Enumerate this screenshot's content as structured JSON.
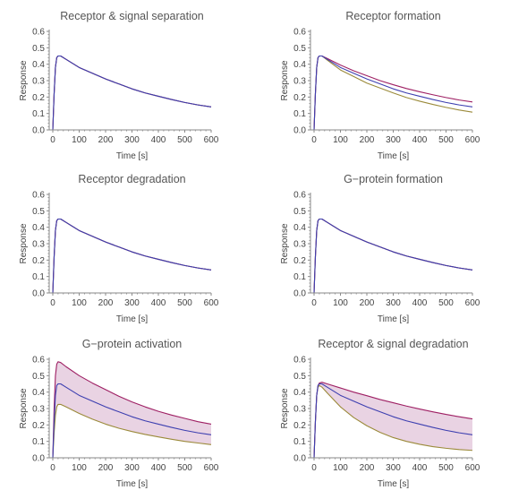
{
  "colors": {
    "upper": "#9e1f63",
    "middle": "#3d3fb0",
    "lower": "#9b8a3a",
    "band": "#e9d3e3",
    "axis": "#8a8a8a"
  },
  "chart_data": [
    {
      "type": "line",
      "title": "Receptor & signal separation",
      "xlabel": "Time [s]",
      "ylabel": "Response",
      "xlim": [
        0,
        600
      ],
      "ylim": [
        0,
        0.6
      ],
      "xticks": [
        0,
        100,
        200,
        300,
        400,
        500,
        600
      ],
      "yticks": [
        0.0,
        0.1,
        0.2,
        0.3,
        0.4,
        0.5,
        0.6
      ],
      "band": false,
      "x": [
        0,
        5,
        10,
        15,
        20,
        30,
        50,
        100,
        150,
        200,
        250,
        300,
        350,
        400,
        450,
        500,
        550,
        600
      ],
      "series": [
        {
          "values": [
            0,
            0.22,
            0.38,
            0.44,
            0.45,
            0.45,
            0.43,
            0.38,
            0.345,
            0.31,
            0.28,
            0.25,
            0.225,
            0.205,
            0.185,
            0.167,
            0.152,
            0.14
          ]
        },
        {
          "values": [
            0,
            0.22,
            0.38,
            0.44,
            0.45,
            0.45,
            0.43,
            0.38,
            0.345,
            0.31,
            0.28,
            0.25,
            0.225,
            0.205,
            0.185,
            0.167,
            0.152,
            0.14
          ]
        },
        {
          "values": [
            0,
            0.22,
            0.38,
            0.44,
            0.45,
            0.45,
            0.43,
            0.38,
            0.345,
            0.31,
            0.28,
            0.25,
            0.225,
            0.205,
            0.185,
            0.167,
            0.152,
            0.14
          ]
        }
      ]
    },
    {
      "type": "line",
      "title": "Receptor formation",
      "xlabel": "Time [s]",
      "ylabel": "Response",
      "xlim": [
        0,
        600
      ],
      "ylim": [
        0,
        0.6
      ],
      "xticks": [
        0,
        100,
        200,
        300,
        400,
        500,
        600
      ],
      "yticks": [
        0.0,
        0.1,
        0.2,
        0.3,
        0.4,
        0.5,
        0.6
      ],
      "band": false,
      "x": [
        0,
        5,
        10,
        15,
        20,
        30,
        50,
        100,
        150,
        200,
        250,
        300,
        350,
        400,
        450,
        500,
        550,
        600
      ],
      "series": [
        {
          "values": [
            0,
            0.22,
            0.38,
            0.44,
            0.45,
            0.45,
            0.435,
            0.395,
            0.36,
            0.33,
            0.3,
            0.275,
            0.252,
            0.232,
            0.214,
            0.197,
            0.182,
            0.17
          ]
        },
        {
          "values": [
            0,
            0.22,
            0.38,
            0.44,
            0.45,
            0.45,
            0.43,
            0.38,
            0.345,
            0.31,
            0.28,
            0.25,
            0.225,
            0.205,
            0.185,
            0.167,
            0.152,
            0.14
          ]
        },
        {
          "values": [
            0,
            0.22,
            0.38,
            0.44,
            0.45,
            0.45,
            0.425,
            0.365,
            0.325,
            0.285,
            0.255,
            0.225,
            0.197,
            0.175,
            0.155,
            0.137,
            0.121,
            0.108
          ]
        }
      ]
    },
    {
      "type": "line",
      "title": "Receptor degradation",
      "xlabel": "Time [s]",
      "ylabel": "Response",
      "xlim": [
        0,
        600
      ],
      "ylim": [
        0,
        0.6
      ],
      "xticks": [
        0,
        100,
        200,
        300,
        400,
        500,
        600
      ],
      "yticks": [
        0.0,
        0.1,
        0.2,
        0.3,
        0.4,
        0.5,
        0.6
      ],
      "band": false,
      "x": [
        0,
        5,
        10,
        15,
        20,
        30,
        50,
        100,
        150,
        200,
        250,
        300,
        350,
        400,
        450,
        500,
        550,
        600
      ],
      "series": [
        {
          "values": [
            0,
            0.22,
            0.38,
            0.44,
            0.45,
            0.45,
            0.43,
            0.38,
            0.345,
            0.31,
            0.28,
            0.25,
            0.225,
            0.205,
            0.185,
            0.167,
            0.152,
            0.14
          ]
        },
        {
          "values": [
            0,
            0.22,
            0.38,
            0.44,
            0.45,
            0.45,
            0.43,
            0.38,
            0.345,
            0.31,
            0.28,
            0.25,
            0.225,
            0.205,
            0.185,
            0.167,
            0.152,
            0.14
          ]
        },
        {
          "values": [
            0,
            0.22,
            0.38,
            0.44,
            0.45,
            0.45,
            0.43,
            0.38,
            0.345,
            0.31,
            0.28,
            0.25,
            0.225,
            0.205,
            0.185,
            0.167,
            0.152,
            0.14
          ]
        }
      ]
    },
    {
      "type": "line",
      "title": "G−protein formation",
      "xlabel": "Time [s]",
      "ylabel": "Response",
      "xlim": [
        0,
        600
      ],
      "ylim": [
        0,
        0.6
      ],
      "xticks": [
        0,
        100,
        200,
        300,
        400,
        500,
        600
      ],
      "yticks": [
        0.0,
        0.1,
        0.2,
        0.3,
        0.4,
        0.5,
        0.6
      ],
      "band": false,
      "x": [
        0,
        5,
        10,
        15,
        20,
        30,
        50,
        100,
        150,
        200,
        250,
        300,
        350,
        400,
        450,
        500,
        550,
        600
      ],
      "series": [
        {
          "values": [
            0,
            0.22,
            0.38,
            0.44,
            0.45,
            0.45,
            0.43,
            0.38,
            0.345,
            0.31,
            0.28,
            0.25,
            0.225,
            0.205,
            0.185,
            0.167,
            0.152,
            0.14
          ]
        },
        {
          "values": [
            0,
            0.22,
            0.38,
            0.44,
            0.45,
            0.45,
            0.43,
            0.38,
            0.345,
            0.31,
            0.28,
            0.25,
            0.225,
            0.205,
            0.185,
            0.167,
            0.152,
            0.14
          ]
        },
        {
          "values": [
            0,
            0.22,
            0.38,
            0.44,
            0.45,
            0.45,
            0.43,
            0.38,
            0.345,
            0.31,
            0.28,
            0.25,
            0.225,
            0.205,
            0.185,
            0.167,
            0.152,
            0.14
          ]
        }
      ]
    },
    {
      "type": "area",
      "title": "G−protein activation",
      "xlabel": "Time [s]",
      "ylabel": "Response",
      "xlim": [
        0,
        600
      ],
      "ylim": [
        0,
        0.6
      ],
      "xticks": [
        0,
        100,
        200,
        300,
        400,
        500,
        600
      ],
      "yticks": [
        0.0,
        0.1,
        0.2,
        0.3,
        0.4,
        0.5,
        0.6
      ],
      "band": true,
      "x": [
        0,
        5,
        10,
        15,
        20,
        30,
        50,
        100,
        150,
        200,
        250,
        300,
        350,
        400,
        450,
        500,
        550,
        600
      ],
      "series": [
        {
          "values": [
            0,
            0.3,
            0.5,
            0.57,
            0.585,
            0.58,
            0.555,
            0.5,
            0.455,
            0.415,
            0.375,
            0.34,
            0.31,
            0.283,
            0.26,
            0.24,
            0.22,
            0.205
          ]
        },
        {
          "values": [
            0,
            0.22,
            0.38,
            0.44,
            0.45,
            0.45,
            0.43,
            0.38,
            0.345,
            0.31,
            0.28,
            0.25,
            0.225,
            0.205,
            0.185,
            0.167,
            0.152,
            0.14
          ]
        },
        {
          "values": [
            0,
            0.15,
            0.26,
            0.31,
            0.325,
            0.325,
            0.31,
            0.27,
            0.235,
            0.205,
            0.18,
            0.16,
            0.142,
            0.127,
            0.113,
            0.1,
            0.09,
            0.08
          ]
        }
      ]
    },
    {
      "type": "area",
      "title": "Receptor & signal degradation",
      "xlabel": "Time [s]",
      "ylabel": "Response",
      "xlim": [
        0,
        600
      ],
      "ylim": [
        0,
        0.6
      ],
      "xticks": [
        0,
        100,
        200,
        300,
        400,
        500,
        600
      ],
      "yticks": [
        0.0,
        0.1,
        0.2,
        0.3,
        0.4,
        0.5,
        0.6
      ],
      "band": true,
      "x": [
        0,
        5,
        10,
        15,
        20,
        30,
        50,
        100,
        150,
        200,
        250,
        300,
        350,
        400,
        450,
        500,
        550,
        600
      ],
      "series": [
        {
          "values": [
            0,
            0.22,
            0.38,
            0.44,
            0.455,
            0.46,
            0.45,
            0.425,
            0.4,
            0.378,
            0.355,
            0.335,
            0.315,
            0.297,
            0.28,
            0.264,
            0.25,
            0.237
          ]
        },
        {
          "values": [
            0,
            0.22,
            0.38,
            0.44,
            0.45,
            0.45,
            0.43,
            0.38,
            0.345,
            0.31,
            0.28,
            0.25,
            0.225,
            0.205,
            0.185,
            0.167,
            0.152,
            0.14
          ]
        },
        {
          "values": [
            0,
            0.22,
            0.38,
            0.43,
            0.44,
            0.43,
            0.395,
            0.31,
            0.245,
            0.195,
            0.155,
            0.123,
            0.1,
            0.082,
            0.068,
            0.058,
            0.05,
            0.045
          ]
        }
      ]
    }
  ]
}
